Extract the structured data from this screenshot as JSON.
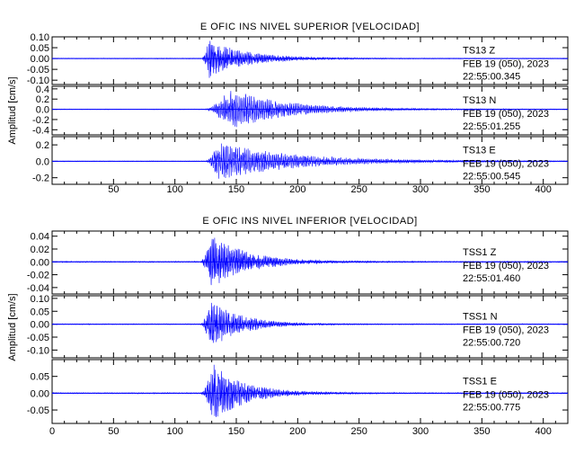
{
  "colors": {
    "trace": "#0000ff",
    "axis": "#000000",
    "background": "#ffffff"
  },
  "chart_data": [
    {
      "type": "line",
      "title": "E OFIC INS NIVEL SUPERIOR [VELOCIDAD]",
      "ylabel": "Amplitud [cm/s]",
      "xlabel": "",
      "xlim": [
        0,
        420
      ],
      "xticks": [
        50,
        100,
        150,
        200,
        250,
        300,
        350,
        400
      ],
      "grid": false,
      "panels": [
        {
          "station": "TS13",
          "component": "Z",
          "date": "FEB 19 (050), 2023",
          "time": "22:55:00.345",
          "ylim": [
            -0.12,
            0.1
          ],
          "yticks": [
            "0.10",
            "0.05",
            "0.00",
            "-0.05",
            "-0.10"
          ],
          "ytick_values": [
            0.1,
            0.05,
            0.0,
            -0.05,
            -0.1
          ],
          "onset": 122,
          "peak_time": 128,
          "peak_amplitude": 0.09,
          "decay": 30,
          "freq": 0.9,
          "noise": 0.0015,
          "seed": 11
        },
        {
          "station": "TS13",
          "component": "N",
          "date": "FEB 19 (050), 2023",
          "time": "22:55:01.255",
          "ylim": [
            -0.5,
            0.45
          ],
          "yticks": [
            "0.4",
            "0.2",
            "0.0",
            "-0.2",
            "-0.4"
          ],
          "ytick_values": [
            0.4,
            0.2,
            0.0,
            -0.2,
            -0.4
          ],
          "onset": 124,
          "peak_time": 145,
          "peak_amplitude": 0.4,
          "decay": 45,
          "freq": 0.75,
          "noise": 0.005,
          "seed": 23
        },
        {
          "station": "TS13",
          "component": "E",
          "date": "FEB 19 (050), 2023",
          "time": "22:55:00.545",
          "ylim": [
            -0.28,
            0.3
          ],
          "yticks": [
            "0.2",
            "0.0",
            "-0.2"
          ],
          "ytick_values": [
            0.2,
            0.0,
            -0.2
          ],
          "onset": 125,
          "peak_time": 135,
          "peak_amplitude": 0.24,
          "decay": 60,
          "freq": 0.7,
          "noise": 0.004,
          "seed": 37
        }
      ]
    },
    {
      "type": "line",
      "title": "E OFIC INS NIVEL INFERIOR [VELOCIDAD]",
      "ylabel": "Amplitud [cm/s]",
      "xlabel": "",
      "xlim": [
        0,
        420
      ],
      "xticks": [
        0,
        50,
        100,
        150,
        200,
        250,
        300,
        350,
        400
      ],
      "grid": false,
      "panels": [
        {
          "station": "TSS1",
          "component": "Z",
          "date": "FEB 19 (050), 2023",
          "time": "22:55:01.460",
          "ylim": [
            -0.05,
            0.048
          ],
          "yticks": [
            "0.04",
            "0.02",
            "0.00",
            "-0.02",
            "-0.04"
          ],
          "ytick_values": [
            0.04,
            0.02,
            0.0,
            -0.02,
            -0.04
          ],
          "onset": 121,
          "peak_time": 130,
          "peak_amplitude": 0.045,
          "decay": 28,
          "freq": 0.9,
          "noise": 0.0008,
          "seed": 51
        },
        {
          "station": "TSS1",
          "component": "N",
          "date": "FEB 19 (050), 2023",
          "time": "22:55:00.720",
          "ylim": [
            -0.13,
            0.11
          ],
          "yticks": [
            "0.10",
            "0.05",
            "0.00",
            "-0.05",
            "-0.10"
          ],
          "ytick_values": [
            0.1,
            0.05,
            0.0,
            -0.05,
            -0.1
          ],
          "onset": 121,
          "peak_time": 129,
          "peak_amplitude": 0.1,
          "decay": 24,
          "freq": 0.85,
          "noise": 0.0015,
          "seed": 67
        },
        {
          "station": "TSS1",
          "component": "E",
          "date": "FEB 19 (050), 2023",
          "time": "22:55:00.775",
          "ylim": [
            -0.09,
            0.1
          ],
          "yticks": [
            "0.05",
            "0.00",
            "-0.05"
          ],
          "ytick_values": [
            0.05,
            0.0,
            -0.05
          ],
          "onset": 121,
          "peak_time": 132,
          "peak_amplitude": 0.09,
          "decay": 25,
          "freq": 0.85,
          "noise": 0.0015,
          "seed": 83
        }
      ]
    }
  ]
}
